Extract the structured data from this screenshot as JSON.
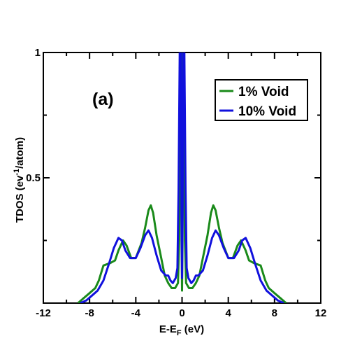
{
  "chart_data": {
    "type": "line",
    "panel_label": "(a)",
    "xlabel": {
      "main": "E-E",
      "sub": "F",
      "unit": " (eV)"
    },
    "ylabel": {
      "main": "TDOS (ev",
      "sup": "-1",
      "tail": "/atom)"
    },
    "xlim": [
      -12,
      12
    ],
    "ylim": [
      0,
      1
    ],
    "x_ticks": [
      -12,
      -8,
      -4,
      0,
      4,
      8,
      12
    ],
    "x_tick_labels": [
      "-12",
      "-8",
      "-4",
      "0",
      "4",
      "8",
      "12"
    ],
    "y_ticks": [
      0.5,
      1
    ],
    "y_tick_labels": [
      "0.5",
      "1"
    ],
    "grid": false,
    "legend_position": "top-right",
    "series": [
      {
        "name": "1% Void",
        "color": "#1a8a1a",
        "points": [
          [
            -9.0,
            0.0
          ],
          [
            -8.5,
            0.02
          ],
          [
            -8.0,
            0.04
          ],
          [
            -7.5,
            0.06
          ],
          [
            -7.2,
            0.09
          ],
          [
            -6.8,
            0.15
          ],
          [
            -6.2,
            0.16
          ],
          [
            -5.8,
            0.17
          ],
          [
            -5.5,
            0.21
          ],
          [
            -5.1,
            0.25
          ],
          [
            -4.8,
            0.23
          ],
          [
            -4.4,
            0.18
          ],
          [
            -4.0,
            0.18
          ],
          [
            -3.5,
            0.24
          ],
          [
            -3.2,
            0.3
          ],
          [
            -2.9,
            0.37
          ],
          [
            -2.7,
            0.39
          ],
          [
            -2.5,
            0.36
          ],
          [
            -2.2,
            0.27
          ],
          [
            -1.8,
            0.18
          ],
          [
            -1.5,
            0.11
          ],
          [
            -1.2,
            0.08
          ],
          [
            -0.9,
            0.06
          ],
          [
            -0.6,
            0.06
          ],
          [
            -0.35,
            0.08
          ],
          [
            -0.25,
            0.25
          ],
          [
            -0.15,
            1.0
          ],
          [
            -0.08,
            1.0
          ],
          [
            -0.04,
            0.25
          ],
          [
            0.0,
            0.05
          ],
          [
            0.04,
            0.25
          ],
          [
            0.08,
            1.0
          ],
          [
            0.15,
            1.0
          ],
          [
            0.25,
            0.25
          ],
          [
            0.35,
            0.08
          ],
          [
            0.6,
            0.06
          ],
          [
            0.9,
            0.06
          ],
          [
            1.2,
            0.08
          ],
          [
            1.5,
            0.11
          ],
          [
            1.8,
            0.18
          ],
          [
            2.2,
            0.27
          ],
          [
            2.5,
            0.36
          ],
          [
            2.7,
            0.39
          ],
          [
            2.9,
            0.37
          ],
          [
            3.2,
            0.3
          ],
          [
            3.5,
            0.24
          ],
          [
            4.0,
            0.18
          ],
          [
            4.4,
            0.18
          ],
          [
            4.8,
            0.23
          ],
          [
            5.1,
            0.25
          ],
          [
            5.5,
            0.21
          ],
          [
            5.8,
            0.17
          ],
          [
            6.2,
            0.16
          ],
          [
            6.8,
            0.15
          ],
          [
            7.2,
            0.09
          ],
          [
            7.5,
            0.06
          ],
          [
            8.0,
            0.04
          ],
          [
            8.5,
            0.02
          ],
          [
            9.0,
            0.0
          ]
        ]
      },
      {
        "name": "10% Void",
        "color": "#1010dd",
        "points": [
          [
            -8.8,
            0.0
          ],
          [
            -8.3,
            0.01
          ],
          [
            -7.8,
            0.03
          ],
          [
            -7.3,
            0.05
          ],
          [
            -6.8,
            0.09
          ],
          [
            -6.3,
            0.16
          ],
          [
            -5.9,
            0.22
          ],
          [
            -5.5,
            0.26
          ],
          [
            -5.2,
            0.25
          ],
          [
            -4.9,
            0.21
          ],
          [
            -4.5,
            0.18
          ],
          [
            -4.0,
            0.18
          ],
          [
            -3.6,
            0.22
          ],
          [
            -3.2,
            0.27
          ],
          [
            -2.9,
            0.29
          ],
          [
            -2.6,
            0.26
          ],
          [
            -2.2,
            0.19
          ],
          [
            -1.8,
            0.13
          ],
          [
            -1.4,
            0.11
          ],
          [
            -1.2,
            0.11
          ],
          [
            -1.0,
            0.09
          ],
          [
            -0.8,
            0.08
          ],
          [
            -0.55,
            0.1
          ],
          [
            -0.4,
            0.14
          ],
          [
            -0.3,
            0.45
          ],
          [
            -0.2,
            1.0
          ],
          [
            -0.1,
            1.0
          ],
          [
            -0.05,
            0.35
          ],
          [
            0.0,
            0.1
          ],
          [
            0.05,
            0.35
          ],
          [
            0.1,
            1.0
          ],
          [
            0.2,
            1.0
          ],
          [
            0.3,
            0.45
          ],
          [
            0.4,
            0.14
          ],
          [
            0.55,
            0.1
          ],
          [
            0.8,
            0.08
          ],
          [
            1.0,
            0.09
          ],
          [
            1.2,
            0.11
          ],
          [
            1.4,
            0.11
          ],
          [
            1.8,
            0.13
          ],
          [
            2.2,
            0.19
          ],
          [
            2.6,
            0.26
          ],
          [
            2.9,
            0.29
          ],
          [
            3.2,
            0.27
          ],
          [
            3.6,
            0.22
          ],
          [
            4.0,
            0.18
          ],
          [
            4.5,
            0.18
          ],
          [
            4.9,
            0.21
          ],
          [
            5.2,
            0.25
          ],
          [
            5.5,
            0.26
          ],
          [
            5.9,
            0.22
          ],
          [
            6.3,
            0.16
          ],
          [
            6.8,
            0.09
          ],
          [
            7.3,
            0.05
          ],
          [
            7.8,
            0.03
          ],
          [
            8.3,
            0.01
          ],
          [
            8.8,
            0.0
          ]
        ]
      }
    ]
  }
}
